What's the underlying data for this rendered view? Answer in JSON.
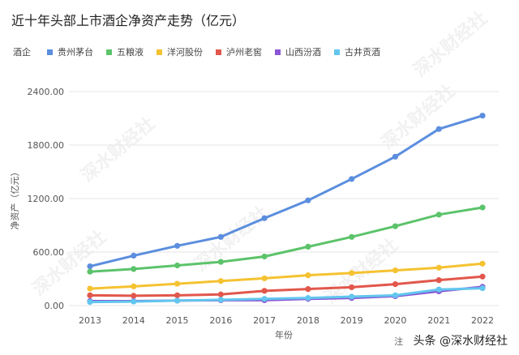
{
  "watermark": "深水财经社",
  "footer": {
    "note_prefix": "注",
    "source": "头条 @深水财经社"
  },
  "chart_data": {
    "type": "line",
    "title": "近十年头部上市酒企净资产走势（亿元）",
    "legend_label": "酒企",
    "xlabel": "年份",
    "ylabel": "净资产（亿元）",
    "ylim": [
      0,
      2400
    ],
    "yticks": [
      "0.00",
      "600.00",
      "1200.00",
      "1800.00",
      "2400.00"
    ],
    "grid": true,
    "legend_position": "top-left",
    "x": [
      "2013",
      "2014",
      "2015",
      "2016",
      "2017",
      "2018",
      "2019",
      "2020",
      "2021",
      "2022"
    ],
    "series": [
      {
        "name": "贵州茅台",
        "color": "#5b8ede",
        "values": [
          440,
          560,
          670,
          770,
          980,
          1180,
          1420,
          1670,
          1980,
          2130
        ]
      },
      {
        "name": "五粮液",
        "color": "#5cc36b",
        "values": [
          380,
          410,
          450,
          490,
          550,
          660,
          770,
          890,
          1020,
          1100
        ]
      },
      {
        "name": "洋河股份",
        "color": "#f5c231",
        "values": [
          190,
          215,
          245,
          275,
          305,
          340,
          365,
          395,
          425,
          470
        ]
      },
      {
        "name": "泸州老窖",
        "color": "#e2574c",
        "values": [
          115,
          110,
          115,
          125,
          165,
          185,
          205,
          240,
          285,
          325
        ]
      },
      {
        "name": "山西汾酒",
        "color": "#8a55d6",
        "values": [
          50,
          50,
          55,
          60,
          60,
          75,
          85,
          105,
          160,
          210
        ]
      },
      {
        "name": "古井贡酒",
        "color": "#62c6ee",
        "values": [
          40,
          45,
          55,
          65,
          75,
          85,
          100,
          115,
          180,
          195
        ]
      }
    ]
  }
}
